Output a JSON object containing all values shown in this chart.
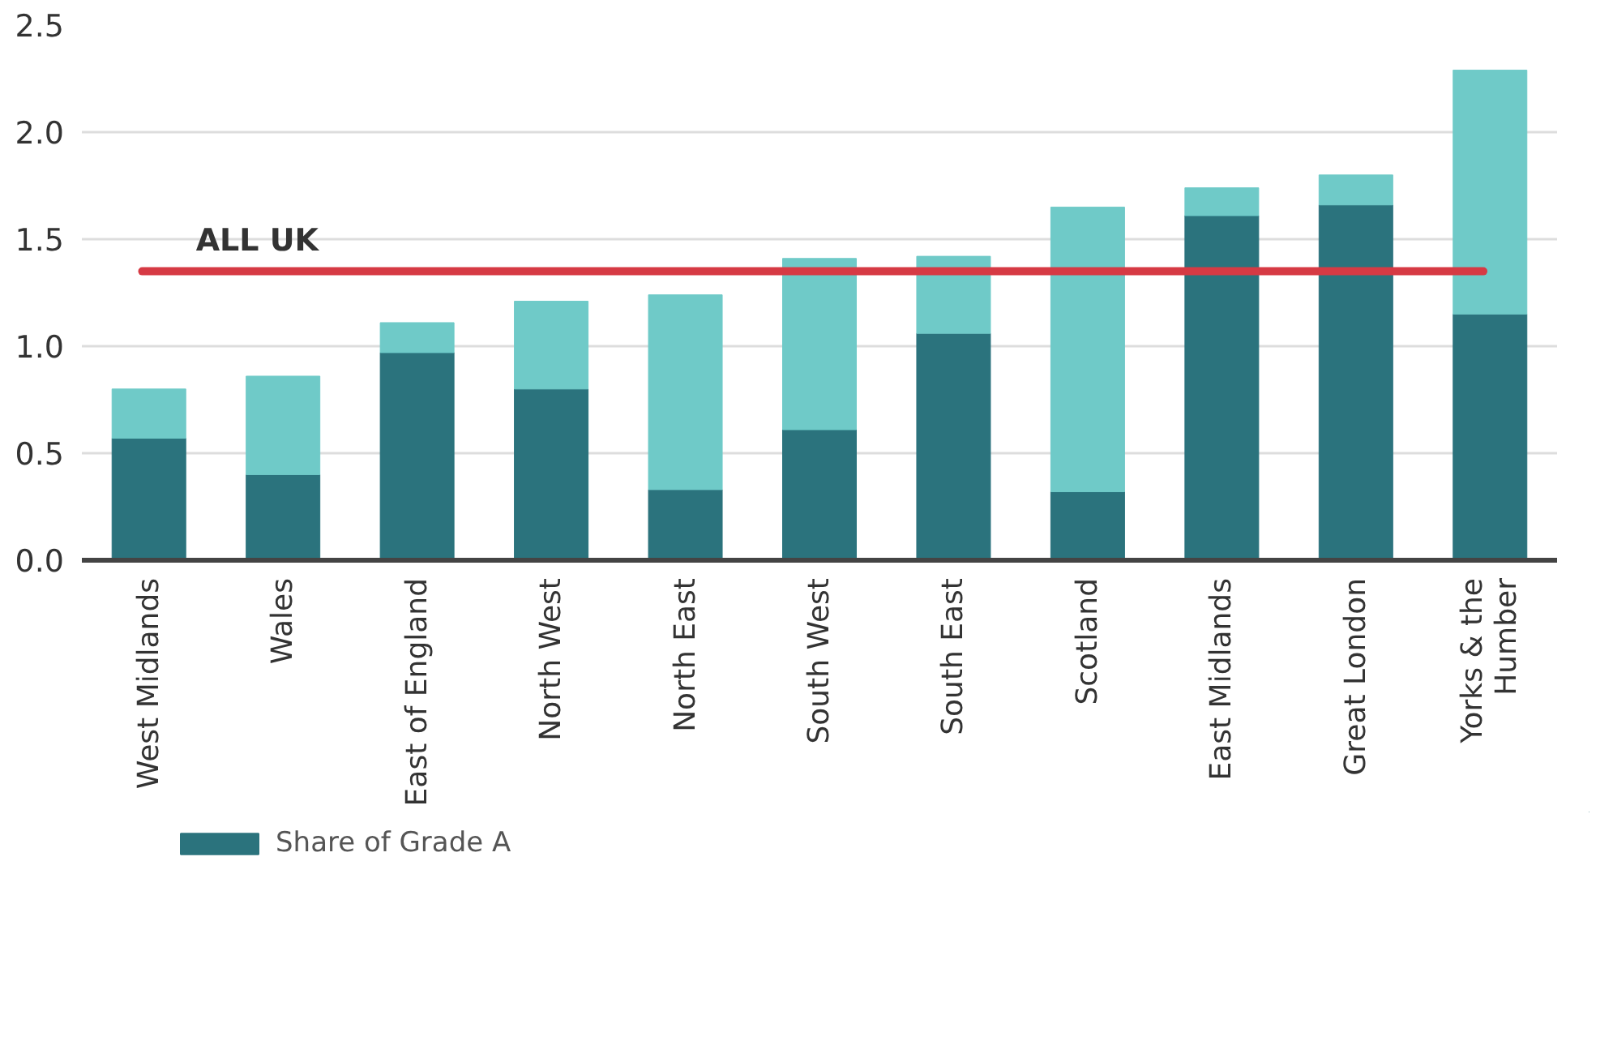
{
  "chart_data": {
    "type": "bar",
    "stacked": true,
    "categories": [
      "West Midlands",
      "Wales",
      "East of England",
      "North West",
      "North East",
      "South West",
      "South East",
      "Scotland",
      "East Midlands",
      "Great London",
      "Yorks & the\nHumber"
    ],
    "series": [
      {
        "name": "Share of Grade A",
        "color": "#2b737d",
        "values": [
          0.57,
          0.4,
          0.97,
          0.8,
          0.33,
          0.61,
          1.06,
          0.32,
          1.61,
          1.66,
          1.15
        ]
      },
      {
        "color": "#6fcac8",
        "values": [
          0.23,
          0.46,
          0.14,
          0.41,
          0.91,
          0.8,
          0.36,
          1.33,
          0.13,
          0.14,
          1.14
        ]
      }
    ],
    "ylim": [
      0,
      2.5
    ],
    "yticks": [
      {
        "value": 0,
        "label": "0.0"
      },
      {
        "value": 0.5,
        "label": "0.5"
      },
      {
        "value": 1,
        "label": "1.0"
      },
      {
        "value": 1.5,
        "label": "1.5"
      },
      {
        "value": 2,
        "label": "2.0"
      },
      {
        "value": 2.5,
        "label": "2.5"
      }
    ],
    "ref_lines": [
      {
        "axis": "y",
        "value": 1.35,
        "label": "ALL UK",
        "color": "#d63a44"
      }
    ],
    "grid": "y",
    "legend": "bottom left"
  }
}
